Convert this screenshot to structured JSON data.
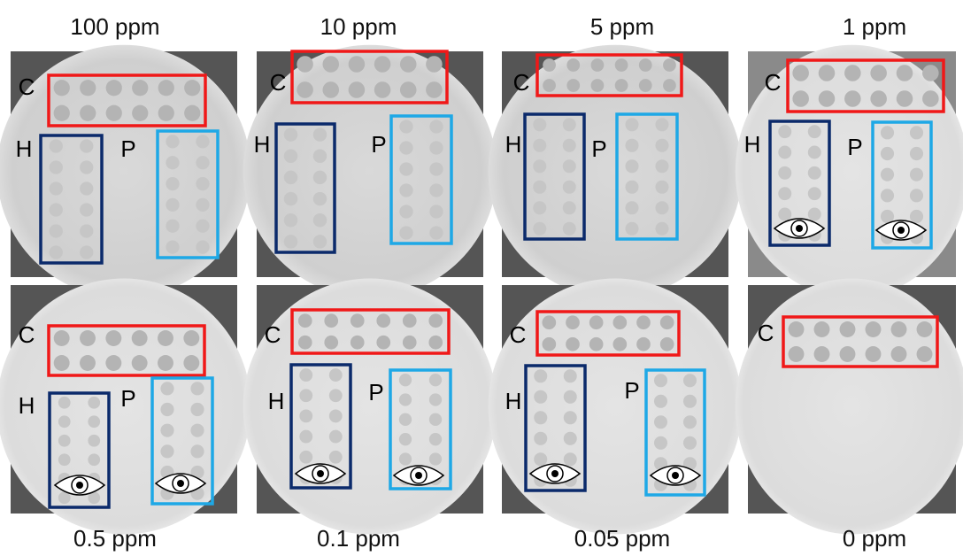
{
  "panels": [
    {
      "concentration": "100 ppm",
      "c": "C",
      "h": "H",
      "p": "P"
    },
    {
      "concentration": "10 ppm",
      "c": "C",
      "h": "H",
      "p": "P"
    },
    {
      "concentration": "5 ppm",
      "c": "C",
      "h": "H",
      "p": "P"
    },
    {
      "concentration": "1 ppm",
      "c": "C",
      "h": "H",
      "p": "P"
    },
    {
      "concentration": "0.5 ppm",
      "c": "C",
      "h": "H",
      "p": "P"
    },
    {
      "concentration": "0.1  ppm",
      "c": "C",
      "h": "H",
      "p": "P"
    },
    {
      "concentration": "0.05 ppm",
      "c": "C",
      "h": "H",
      "p": "P"
    },
    {
      "concentration": "0 ppm",
      "c": "C"
    }
  ]
}
